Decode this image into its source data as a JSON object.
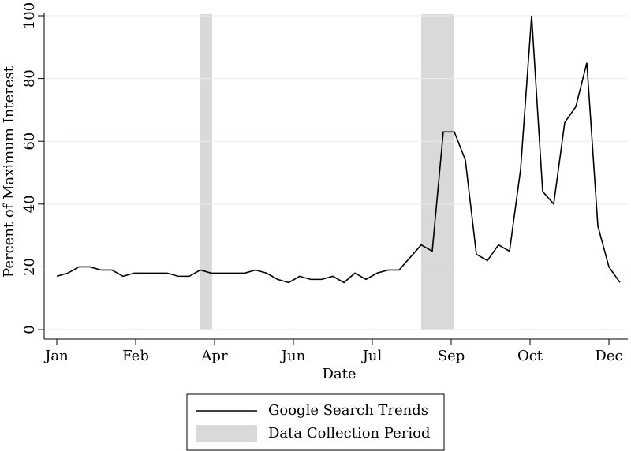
{
  "chart_data": {
    "type": "line",
    "x_label": "Date",
    "y_label": "Percent of Maximum Interest",
    "x": [
      0,
      7,
      14,
      21,
      28,
      35,
      42,
      49,
      56,
      63,
      70,
      77,
      84,
      91,
      98,
      105,
      112,
      119,
      126,
      133,
      140,
      147,
      154,
      161,
      168,
      175,
      182,
      189,
      196,
      203,
      210,
      217,
      224,
      231,
      238,
      245,
      252,
      259,
      266,
      273,
      280,
      287,
      294,
      301,
      308,
      315,
      322,
      329,
      336,
      343,
      350,
      357
    ],
    "series": [
      {
        "name": "Google Search Trends",
        "color": "#000000",
        "values": [
          17,
          18,
          20,
          20,
          19,
          19,
          17,
          18,
          18,
          18,
          18,
          17,
          17,
          19,
          18,
          18,
          18,
          18,
          19,
          18,
          16,
          15,
          17,
          16,
          16,
          17,
          15,
          18,
          16,
          18,
          19,
          19,
          23,
          27,
          25,
          63,
          63,
          54,
          24,
          22,
          27,
          25,
          51,
          100,
          44,
          40,
          66,
          71,
          85,
          33,
          20,
          15
        ]
      }
    ],
    "bands": {
      "name": "Data Collection Period",
      "color": "#d9d9d9",
      "ranges": [
        [
          91,
          98.5
        ],
        [
          231,
          252
        ]
      ]
    },
    "xlim": [
      -8,
      362
    ],
    "xticks": [
      {
        "value": 0,
        "label": "Jan"
      },
      {
        "value": 50,
        "label": "Feb"
      },
      {
        "value": 100,
        "label": "Apr"
      },
      {
        "value": 150,
        "label": "Jun"
      },
      {
        "value": 200,
        "label": "Jul"
      },
      {
        "value": 250,
        "label": "Sep"
      },
      {
        "value": 300,
        "label": "Oct"
      },
      {
        "value": 350,
        "label": "Dec"
      }
    ],
    "ylim": [
      -3,
      101
    ],
    "yticks": [
      0,
      20,
      40,
      60,
      80,
      100
    ],
    "grid": true
  }
}
